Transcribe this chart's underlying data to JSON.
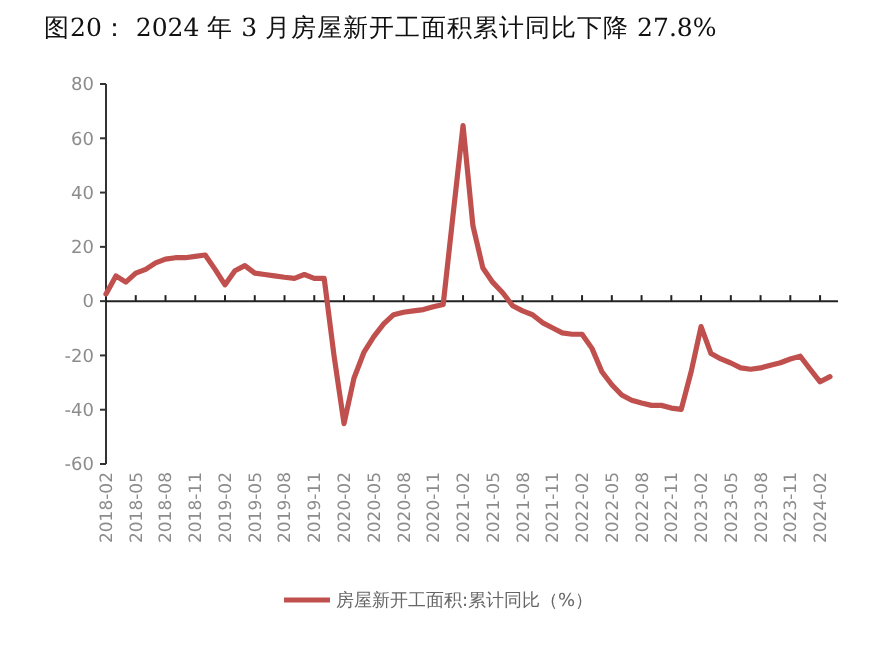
{
  "chart_data": {
    "type": "line",
    "title": "图20：   2024 年 3 月房屋新开工面积累计同比下降 27.8%",
    "categories": [
      "2018-02",
      null,
      null,
      "2018-05",
      null,
      null,
      "2018-08",
      null,
      null,
      "2018-11",
      null,
      null,
      "2019-02",
      null,
      null,
      "2019-05",
      null,
      null,
      "2019-08",
      null,
      null,
      "2019-11",
      null,
      null,
      "2020-02",
      null,
      null,
      "2020-05",
      null,
      null,
      "2020-08",
      null,
      null,
      "2020-11",
      null,
      null,
      "2021-02",
      null,
      null,
      "2021-05",
      null,
      null,
      "2021-08",
      null,
      null,
      "2021-11",
      null,
      null,
      "2022-02",
      null,
      null,
      "2022-05",
      null,
      null,
      "2022-08",
      null,
      null,
      "2022-11",
      null,
      null,
      "2023-02",
      null,
      null,
      "2023-05",
      null,
      null,
      "2023-08",
      null,
      null,
      "2023-11",
      null,
      null,
      "2024-02",
      null
    ],
    "series": [
      {
        "name": "房屋新开工面积:累计同比（%）",
        "color": "#c0504d",
        "values": [
          2.6,
          9.3,
          7,
          10.3,
          11.7,
          14.1,
          15.5,
          16,
          16,
          16.5,
          17,
          11.7,
          6,
          11.2,
          13.1,
          10.3,
          9.8,
          9.3,
          8.8,
          8.4,
          9.8,
          8.4,
          8.4,
          -20.3,
          -45.1,
          -28.4,
          -18.9,
          -13.1,
          -8.4,
          -5,
          -4.1,
          -3.6,
          -3.1,
          -2.1,
          -1.2,
          32,
          64.7,
          27.7,
          12.2,
          6.9,
          3.1,
          -1.7,
          -3.6,
          -5,
          -7.9,
          -9.8,
          -11.7,
          -12.2,
          -12.2,
          -17.4,
          -26,
          -30.8,
          -34.6,
          -36.5,
          -37.5,
          -38.4,
          -38.4,
          -39.4,
          -39.9,
          -26,
          -9.4,
          -19.3,
          -21.3,
          -22.8,
          -24.6,
          -25.1,
          -24.6,
          -23.6,
          -22.7,
          -21.3,
          -20.3,
          -25.1,
          -29.7,
          -27.8
        ]
      }
    ],
    "ylim": [
      -60,
      80
    ],
    "yticks": [
      -60,
      -40,
      -20,
      0,
      20,
      40,
      60,
      80
    ],
    "legend": "bottom",
    "marker": "none",
    "line_style": "solid"
  }
}
